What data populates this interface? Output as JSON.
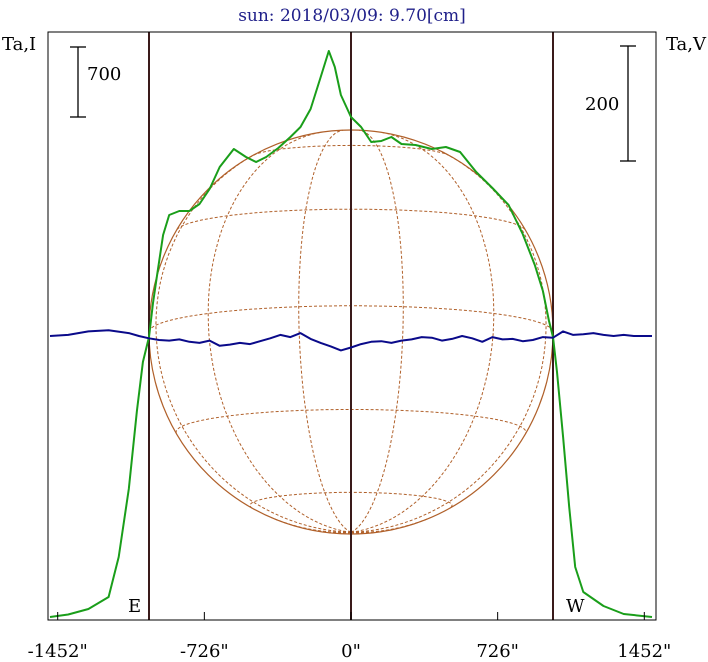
{
  "chart_data": {
    "type": "line",
    "title": "sun: 2018/03/09: 9.70[cm]",
    "left_axis_label": "Ta,I",
    "right_axis_label": "Ta,V",
    "left_scale_bar_label": "700",
    "right_scale_bar_label": "200",
    "left_scale_bar_value": 700,
    "right_scale_bar_value": 200,
    "limb_labels": {
      "east": "E",
      "west": "W"
    },
    "x_unit": "arcsec",
    "xlim": [
      -1500,
      1500
    ],
    "x_ticks": [
      {
        "value": -1452,
        "label": "-1452\""
      },
      {
        "value": -726,
        "label": "-726\""
      },
      {
        "value": 0,
        "label": "0\""
      },
      {
        "value": 726,
        "label": "726\""
      },
      {
        "value": 1452,
        "label": "1452\""
      }
    ],
    "vertical_lines_x": [
      -1000,
      0,
      1000
    ],
    "solar_radius": 1000,
    "grid": false,
    "colors": {
      "title": "#20208a",
      "intensity": "#1a9e1a",
      "polarization": "#0a0a8a",
      "solar_disk": "#b0602a",
      "vertical_lines": "#3a1a1a",
      "frame": "#000000"
    },
    "series": [
      {
        "name": "I",
        "y_axis": "left",
        "color": "#1a9e1a",
        "points": [
          [
            -1490,
            0
          ],
          [
            -1400,
            25
          ],
          [
            -1300,
            80
          ],
          [
            -1200,
            200
          ],
          [
            -1150,
            600
          ],
          [
            -1100,
            1280
          ],
          [
            -1060,
            2060
          ],
          [
            -1030,
            2550
          ],
          [
            -1000,
            2800
          ],
          [
            -980,
            3140
          ],
          [
            -960,
            3420
          ],
          [
            -930,
            3820
          ],
          [
            -900,
            4020
          ],
          [
            -850,
            4060
          ],
          [
            -800,
            4060
          ],
          [
            -750,
            4130
          ],
          [
            -700,
            4280
          ],
          [
            -650,
            4500
          ],
          [
            -580,
            4680
          ],
          [
            -520,
            4600
          ],
          [
            -470,
            4550
          ],
          [
            -420,
            4600
          ],
          [
            -360,
            4690
          ],
          [
            -300,
            4800
          ],
          [
            -250,
            4900
          ],
          [
            -200,
            5080
          ],
          [
            -150,
            5400
          ],
          [
            -110,
            5660
          ],
          [
            -80,
            5500
          ],
          [
            -50,
            5220
          ],
          [
            0,
            5000
          ],
          [
            50,
            4900
          ],
          [
            100,
            4750
          ],
          [
            150,
            4760
          ],
          [
            200,
            4800
          ],
          [
            250,
            4730
          ],
          [
            320,
            4720
          ],
          [
            400,
            4680
          ],
          [
            470,
            4700
          ],
          [
            540,
            4650
          ],
          [
            620,
            4450
          ],
          [
            700,
            4290
          ],
          [
            780,
            4120
          ],
          [
            850,
            3830
          ],
          [
            910,
            3520
          ],
          [
            950,
            3260
          ],
          [
            980,
            2960
          ],
          [
            1000,
            2800
          ],
          [
            1020,
            2450
          ],
          [
            1050,
            1800
          ],
          [
            1080,
            1100
          ],
          [
            1110,
            500
          ],
          [
            1150,
            250
          ],
          [
            1250,
            110
          ],
          [
            1350,
            30
          ],
          [
            1490,
            0
          ]
        ]
      },
      {
        "name": "V",
        "y_axis": "right",
        "color": "#0a0a8a",
        "points": [
          [
            -1490,
            0
          ],
          [
            -1400,
            2
          ],
          [
            -1300,
            8
          ],
          [
            -1200,
            10
          ],
          [
            -1100,
            5
          ],
          [
            -1050,
            0
          ],
          [
            -1000,
            -4
          ],
          [
            -950,
            -7
          ],
          [
            -900,
            -8
          ],
          [
            -850,
            -6
          ],
          [
            -800,
            -10
          ],
          [
            -750,
            -12
          ],
          [
            -700,
            -8
          ],
          [
            -650,
            -17
          ],
          [
            -600,
            -15
          ],
          [
            -550,
            -12
          ],
          [
            -500,
            -14
          ],
          [
            -450,
            -9
          ],
          [
            -400,
            -4
          ],
          [
            -350,
            2
          ],
          [
            -300,
            -2
          ],
          [
            -250,
            5
          ],
          [
            -200,
            -5
          ],
          [
            -150,
            -12
          ],
          [
            -100,
            -18
          ],
          [
            -50,
            -25
          ],
          [
            0,
            -20
          ],
          [
            50,
            -14
          ],
          [
            100,
            -10
          ],
          [
            150,
            -9
          ],
          [
            200,
            -12
          ],
          [
            250,
            -8
          ],
          [
            300,
            -6
          ],
          [
            350,
            -2
          ],
          [
            400,
            -3
          ],
          [
            450,
            -8
          ],
          [
            500,
            -5
          ],
          [
            550,
            0
          ],
          [
            600,
            -4
          ],
          [
            650,
            -10
          ],
          [
            700,
            -2
          ],
          [
            750,
            -6
          ],
          [
            800,
            -5
          ],
          [
            850,
            -9
          ],
          [
            900,
            -7
          ],
          [
            950,
            -2
          ],
          [
            1000,
            -3
          ],
          [
            1050,
            8
          ],
          [
            1100,
            2
          ],
          [
            1150,
            3
          ],
          [
            1200,
            5
          ],
          [
            1250,
            2
          ],
          [
            1300,
            0
          ],
          [
            1350,
            2
          ],
          [
            1400,
            0
          ],
          [
            1490,
            0
          ]
        ]
      }
    ]
  }
}
